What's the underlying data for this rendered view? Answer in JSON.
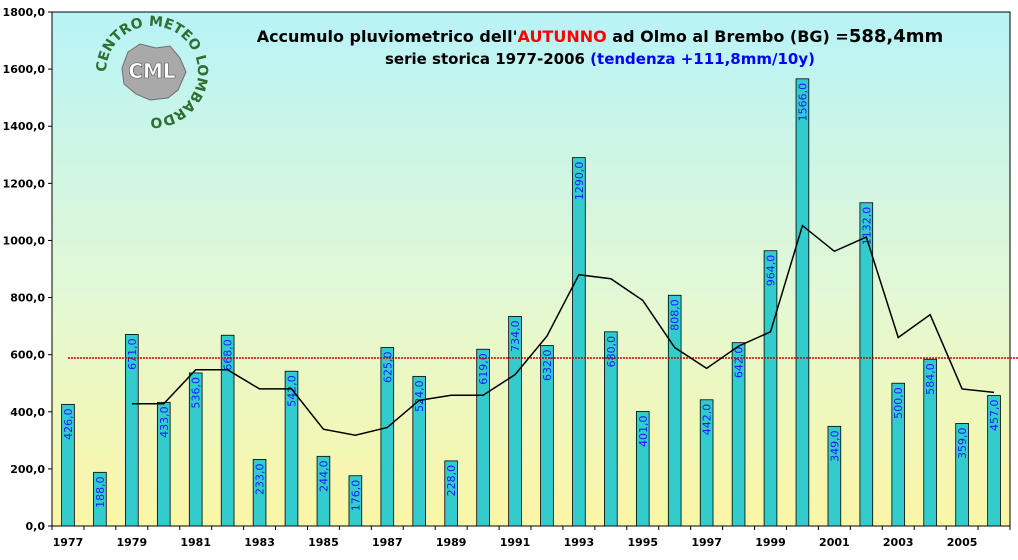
{
  "chart_data": {
    "type": "bar",
    "title_prefix": "Accumulo pluviometrico dell'",
    "title_highlight": "AUTUNNO",
    "title_middle": " ad Olmo al Brembo (BG) =",
    "title_value": "588,4mm",
    "subtitle": "serie storica 1977-2006",
    "subtitle_trend": "(tendenza +111,8mm/10y)",
    "logo_text": "CML",
    "logo_ring_text": "CENTRO METEO LOMBARDO",
    "categories": [
      1977,
      1978,
      1979,
      1980,
      1981,
      1982,
      1983,
      1984,
      1985,
      1986,
      1987,
      1988,
      1989,
      1990,
      1991,
      1992,
      1993,
      1994,
      1995,
      1996,
      1997,
      1998,
      1999,
      2000,
      2001,
      2002,
      2003,
      2004,
      2005,
      2006
    ],
    "x_tick_labels": [
      "1977",
      "1979",
      "1981",
      "1983",
      "1985",
      "1987",
      "1989",
      "1991",
      "1993",
      "1995",
      "1997",
      "1999",
      "2001",
      "2003",
      "2005"
    ],
    "values": [
      426.0,
      188.0,
      671.0,
      433.0,
      536.0,
      668.0,
      233.0,
      542.0,
      244.0,
      176.0,
      625.0,
      524.0,
      228.0,
      619.0,
      734.0,
      632.0,
      1290.0,
      680.0,
      401.0,
      808.0,
      442.0,
      642.0,
      964.0,
      1566.0,
      349.0,
      1132.0,
      500.0,
      584.0,
      359.0,
      457.0
    ],
    "value_labels": [
      "426,0",
      "188,0",
      "671,0",
      "433,0",
      "536,0",
      "668,0",
      "233,0",
      "542,0",
      "244,0",
      "176,0",
      "625,0",
      "524,0",
      "228,0",
      "619,0",
      "734,0",
      "632,0",
      "1290,0",
      "680,0",
      "401,0",
      "808,0",
      "442,0",
      "642,0",
      "964,0",
      "1566,0",
      "349,0",
      "1132,0",
      "500,0",
      "584,0",
      "359,0",
      "457,0"
    ],
    "moving_average": [
      null,
      null,
      428,
      428,
      547,
      547,
      480,
      480,
      339,
      318,
      345,
      440,
      458,
      458,
      530,
      665,
      880,
      866,
      790,
      625,
      552,
      630,
      680,
      1052,
      962,
      1012,
      660,
      740,
      480,
      468
    ],
    "mean_line": 588.4,
    "y_ticks": [
      "0,0",
      "200,0",
      "400,0",
      "600,0",
      "800,0",
      "1000,0",
      "1200,0",
      "1400,0",
      "1600,0",
      "1800,0"
    ],
    "ylim": [
      0,
      1800
    ],
    "colors": {
      "bar": "#33cccc",
      "bar_border": "#000000",
      "average_line": "#000000",
      "mean_line": "#cc0000",
      "highlight": "#ff0000",
      "trend_text": "#0000ff",
      "value_label": "#1a1aff",
      "bg_top": "#b8f3f7",
      "bg_bottom": "#fbf6a6"
    }
  }
}
